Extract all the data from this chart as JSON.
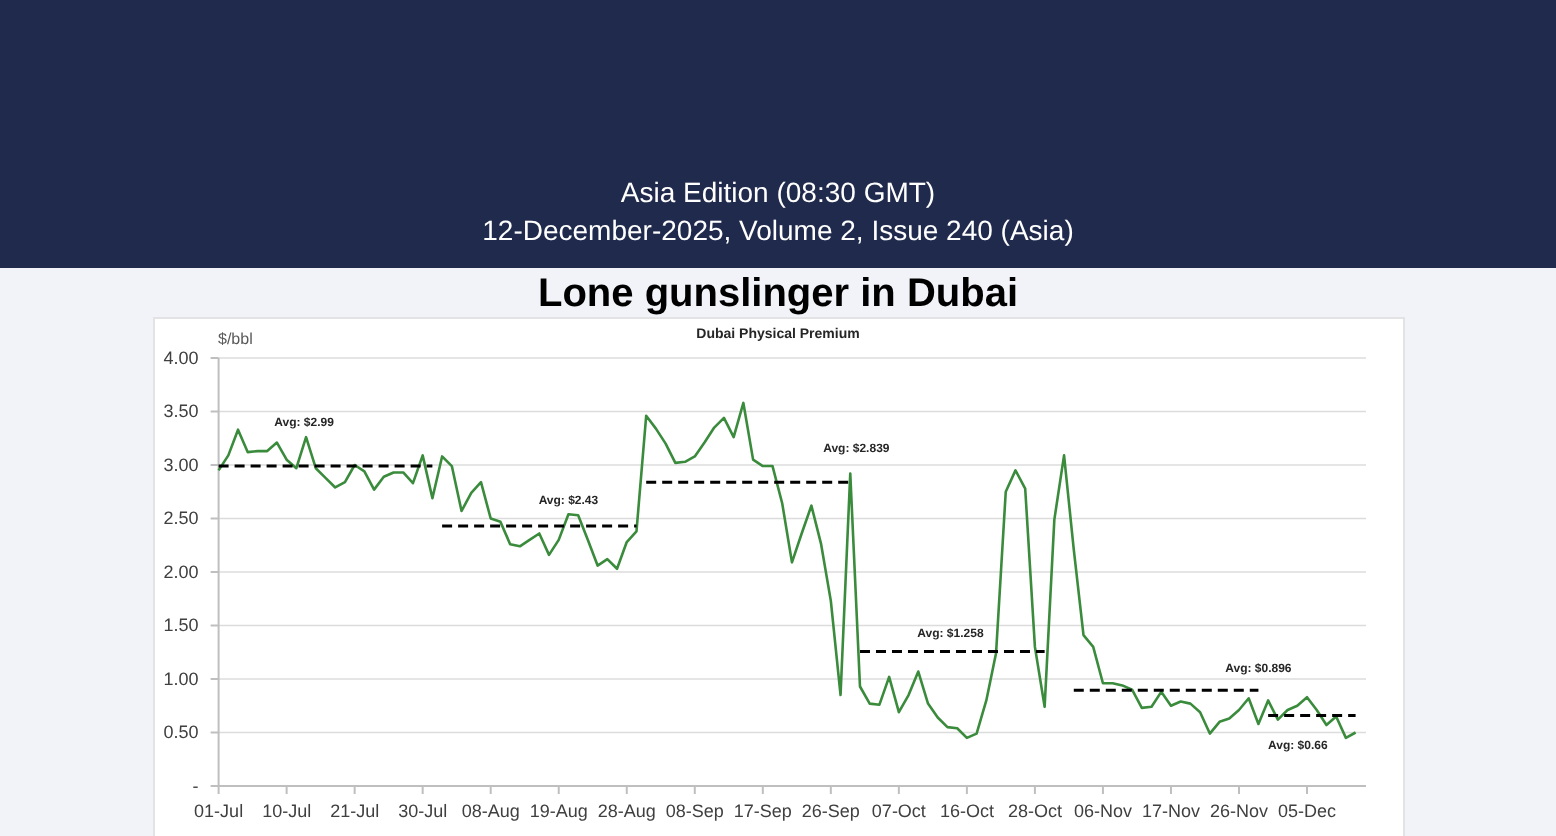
{
  "chart_data": {
    "type": "line",
    "title": "Lone gunslinger in Dubai",
    "subtitle": "Dubai Physical Premium",
    "ylabel": "$/bbl",
    "annotations": [
      "Asia Edition (08:30 GMT)",
      "12-December-2025, Volume 2, Issue 240 (Asia)"
    ],
    "categories": [
      "01-Jul",
      null,
      null,
      null,
      null,
      null,
      null,
      "10-Jul",
      null,
      null,
      null,
      null,
      null,
      null,
      "21-Jul",
      null,
      null,
      null,
      null,
      null,
      null,
      "30-Jul",
      null,
      null,
      null,
      null,
      null,
      null,
      "08-Aug",
      null,
      null,
      null,
      null,
      null,
      null,
      "19-Aug",
      null,
      null,
      null,
      null,
      null,
      null,
      "28-Aug",
      null,
      null,
      null,
      null,
      null,
      null,
      "08-Sep",
      null,
      null,
      null,
      null,
      null,
      null,
      "17-Sep",
      null,
      null,
      null,
      null,
      null,
      null,
      "26-Sep",
      null,
      null,
      null,
      null,
      null,
      null,
      "07-Oct",
      null,
      null,
      null,
      null,
      null,
      null,
      "16-Oct",
      null,
      null,
      null,
      null,
      null,
      null,
      "28-Oct",
      null,
      null,
      null,
      null,
      null,
      null,
      "06-Nov",
      null,
      null,
      null,
      null,
      null,
      null,
      "17-Nov",
      null,
      null,
      null,
      null,
      null,
      null,
      "26-Nov",
      null,
      null,
      null,
      null,
      null,
      null,
      "05-Dec",
      null,
      null,
      null,
      null,
      null
    ],
    "series": [
      {
        "color": "#3a8b3c",
        "values": [
          2.95,
          3.09,
          3.33,
          3.12,
          3.13,
          3.13,
          3.21,
          3.05,
          2.97,
          3.26,
          2.97,
          2.88,
          2.79,
          2.84,
          3.0,
          2.94,
          2.77,
          2.89,
          2.93,
          2.93,
          2.83,
          3.09,
          2.69,
          3.08,
          2.99,
          2.57,
          2.74,
          2.84,
          2.5,
          2.47,
          2.26,
          2.24,
          2.3,
          2.36,
          2.16,
          2.3,
          2.54,
          2.53,
          2.3,
          2.06,
          2.12,
          2.03,
          2.28,
          2.38,
          3.46,
          3.34,
          3.2,
          3.02,
          3.03,
          3.08,
          3.21,
          3.35,
          3.44,
          3.26,
          3.58,
          3.05,
          2.99,
          2.99,
          2.64,
          2.09,
          2.36,
          2.62,
          2.26,
          1.73,
          0.85,
          2.92,
          0.93,
          0.77,
          0.76,
          1.02,
          0.69,
          0.85,
          1.07,
          0.77,
          0.64,
          0.55,
          0.54,
          0.45,
          0.49,
          0.8,
          1.24,
          2.75,
          2.95,
          2.78,
          1.3,
          0.74,
          2.49,
          3.09,
          2.21,
          1.41,
          1.3,
          0.96,
          0.96,
          0.94,
          0.9,
          0.73,
          0.74,
          0.88,
          0.75,
          0.79,
          0.77,
          0.69,
          0.49,
          0.6,
          0.63,
          0.71,
          0.82,
          0.58,
          0.8,
          0.62,
          0.71,
          0.75,
          0.83,
          0.71,
          0.57,
          0.65,
          0.45,
          0.5
        ]
      },
      {
        "name": "Avg: $2.99",
        "color": "#000000",
        "line_style": "dashed",
        "values": [
          2.99,
          2.99,
          2.99,
          2.99,
          2.99,
          2.99,
          2.99,
          2.99,
          2.99,
          2.99,
          2.99,
          2.99,
          2.99,
          2.99,
          2.99,
          2.99,
          2.99,
          2.99,
          2.99,
          2.99,
          2.99,
          2.99,
          2.99,
          null,
          null,
          null,
          null,
          null,
          null,
          null,
          null,
          null,
          null,
          null,
          null,
          null,
          null,
          null,
          null,
          null,
          null,
          null,
          null,
          null,
          null,
          null,
          null,
          null,
          null,
          null,
          null,
          null,
          null,
          null,
          null,
          null,
          null,
          null,
          null,
          null,
          null,
          null,
          null,
          null,
          null,
          null,
          null,
          null,
          null,
          null,
          null,
          null,
          null,
          null,
          null,
          null,
          null,
          null,
          null,
          null,
          null,
          null,
          null,
          null,
          null,
          null,
          null,
          null,
          null,
          null,
          null,
          null,
          null,
          null,
          null,
          null,
          null,
          null,
          null,
          null,
          null,
          null,
          null,
          null,
          null,
          null,
          null,
          null,
          null,
          null,
          null,
          null,
          null,
          null,
          null,
          null,
          null,
          null
        ]
      },
      {
        "name": "Avg: $2.43",
        "color": "#000000",
        "line_style": "dashed",
        "values": [
          null,
          null,
          null,
          null,
          null,
          null,
          null,
          null,
          null,
          null,
          null,
          null,
          null,
          null,
          null,
          null,
          null,
          null,
          null,
          null,
          null,
          null,
          null,
          2.43,
          2.43,
          2.43,
          2.43,
          2.43,
          2.43,
          2.43,
          2.43,
          2.43,
          2.43,
          2.43,
          2.43,
          2.43,
          2.43,
          2.43,
          2.43,
          2.43,
          2.43,
          2.43,
          2.43,
          2.43,
          null,
          null,
          null,
          null,
          null,
          null,
          null,
          null,
          null,
          null,
          null,
          null,
          null,
          null,
          null,
          null,
          null,
          null,
          null,
          null,
          null,
          null,
          null,
          null,
          null,
          null,
          null,
          null,
          null,
          null,
          null,
          null,
          null,
          null,
          null,
          null,
          null,
          null,
          null,
          null,
          null,
          null,
          null,
          null,
          null,
          null,
          null,
          null,
          null,
          null,
          null,
          null,
          null,
          null,
          null,
          null,
          null,
          null,
          null,
          null,
          null,
          null,
          null,
          null,
          null,
          null,
          null,
          null,
          null,
          null,
          null,
          null,
          null,
          null
        ]
      },
      {
        "name": "Avg: $2.839",
        "color": "#000000",
        "line_style": "dashed",
        "values": [
          null,
          null,
          null,
          null,
          null,
          null,
          null,
          null,
          null,
          null,
          null,
          null,
          null,
          null,
          null,
          null,
          null,
          null,
          null,
          null,
          null,
          null,
          null,
          null,
          null,
          null,
          null,
          null,
          null,
          null,
          null,
          null,
          null,
          null,
          null,
          null,
          null,
          null,
          null,
          null,
          null,
          null,
          null,
          null,
          2.839,
          2.839,
          2.839,
          2.839,
          2.839,
          2.839,
          2.839,
          2.839,
          2.839,
          2.839,
          2.839,
          2.839,
          2.839,
          2.839,
          2.839,
          2.839,
          2.839,
          2.839,
          2.839,
          2.839,
          2.839,
          2.839,
          null,
          null,
          null,
          null,
          null,
          null,
          null,
          null,
          null,
          null,
          null,
          null,
          null,
          null,
          null,
          null,
          null,
          null,
          null,
          null,
          null,
          null,
          null,
          null,
          null,
          null,
          null,
          null,
          null,
          null,
          null,
          null,
          null,
          null,
          null,
          null,
          null,
          null,
          null,
          null,
          null,
          null,
          null,
          null,
          null,
          null,
          null,
          null,
          null,
          null,
          null,
          null
        ]
      },
      {
        "name": "Avg: $1.258",
        "color": "#000000",
        "line_style": "dashed",
        "values": [
          null,
          null,
          null,
          null,
          null,
          null,
          null,
          null,
          null,
          null,
          null,
          null,
          null,
          null,
          null,
          null,
          null,
          null,
          null,
          null,
          null,
          null,
          null,
          null,
          null,
          null,
          null,
          null,
          null,
          null,
          null,
          null,
          null,
          null,
          null,
          null,
          null,
          null,
          null,
          null,
          null,
          null,
          null,
          null,
          null,
          null,
          null,
          null,
          null,
          null,
          null,
          null,
          null,
          null,
          null,
          null,
          null,
          null,
          null,
          null,
          null,
          null,
          null,
          null,
          null,
          null,
          1.258,
          1.258,
          1.258,
          1.258,
          1.258,
          1.258,
          1.258,
          1.258,
          1.258,
          1.258,
          1.258,
          1.258,
          1.258,
          1.258,
          1.258,
          1.258,
          1.258,
          1.258,
          1.258,
          1.258,
          null,
          null,
          null,
          null,
          null,
          null,
          null,
          null,
          null,
          null,
          null,
          null,
          null,
          null,
          null,
          null,
          null,
          null,
          null,
          null,
          null,
          null,
          null,
          null,
          null,
          null,
          null,
          null,
          null,
          null,
          null,
          null
        ]
      },
      {
        "name": "Avg: $0.896",
        "color": "#000000",
        "line_style": "dashed",
        "values": [
          null,
          null,
          null,
          null,
          null,
          null,
          null,
          null,
          null,
          null,
          null,
          null,
          null,
          null,
          null,
          null,
          null,
          null,
          null,
          null,
          null,
          null,
          null,
          null,
          null,
          null,
          null,
          null,
          null,
          null,
          null,
          null,
          null,
          null,
          null,
          null,
          null,
          null,
          null,
          null,
          null,
          null,
          null,
          null,
          null,
          null,
          null,
          null,
          null,
          null,
          null,
          null,
          null,
          null,
          null,
          null,
          null,
          null,
          null,
          null,
          null,
          null,
          null,
          null,
          null,
          null,
          null,
          null,
          null,
          null,
          null,
          null,
          null,
          null,
          null,
          null,
          null,
          null,
          null,
          null,
          null,
          null,
          null,
          null,
          null,
          null,
          null,
          null,
          0.896,
          0.896,
          0.896,
          0.896,
          0.896,
          0.896,
          0.896,
          0.896,
          0.896,
          0.896,
          0.896,
          0.896,
          0.896,
          0.896,
          0.896,
          0.896,
          0.896,
          0.896,
          0.896,
          0.896,
          null,
          null,
          null,
          null,
          null,
          null,
          null,
          null,
          null,
          null
        ]
      },
      {
        "name": "Avg: $0.66",
        "color": "#000000",
        "line_style": "dashed",
        "values": [
          null,
          null,
          null,
          null,
          null,
          null,
          null,
          null,
          null,
          null,
          null,
          null,
          null,
          null,
          null,
          null,
          null,
          null,
          null,
          null,
          null,
          null,
          null,
          null,
          null,
          null,
          null,
          null,
          null,
          null,
          null,
          null,
          null,
          null,
          null,
          null,
          null,
          null,
          null,
          null,
          null,
          null,
          null,
          null,
          null,
          null,
          null,
          null,
          null,
          null,
          null,
          null,
          null,
          null,
          null,
          null,
          null,
          null,
          null,
          null,
          null,
          null,
          null,
          null,
          null,
          null,
          null,
          null,
          null,
          null,
          null,
          null,
          null,
          null,
          null,
          null,
          null,
          null,
          null,
          null,
          null,
          null,
          null,
          null,
          null,
          null,
          null,
          null,
          null,
          null,
          null,
          null,
          null,
          null,
          null,
          null,
          null,
          null,
          null,
          null,
          null,
          null,
          null,
          null,
          null,
          null,
          null,
          null,
          0.66,
          0.66,
          0.66,
          0.66,
          0.66,
          0.66,
          0.66,
          0.66,
          0.66,
          0.66
        ]
      }
    ],
    "ylim": [
      0,
      4
    ],
    "yticks": [
      {
        "value": 0,
        "label": "-"
      },
      {
        "value": 0.5,
        "label": "0.50"
      },
      {
        "value": 1,
        "label": "1.00"
      },
      {
        "value": 1.5,
        "label": "1.50"
      },
      {
        "value": 2,
        "label": "2.00"
      },
      {
        "value": 2.5,
        "label": "2.50"
      },
      {
        "value": 3,
        "label": "3.00"
      },
      {
        "value": 3.5,
        "label": "3.50"
      },
      {
        "value": 4,
        "label": "4.00"
      }
    ],
    "grid": "y"
  }
}
